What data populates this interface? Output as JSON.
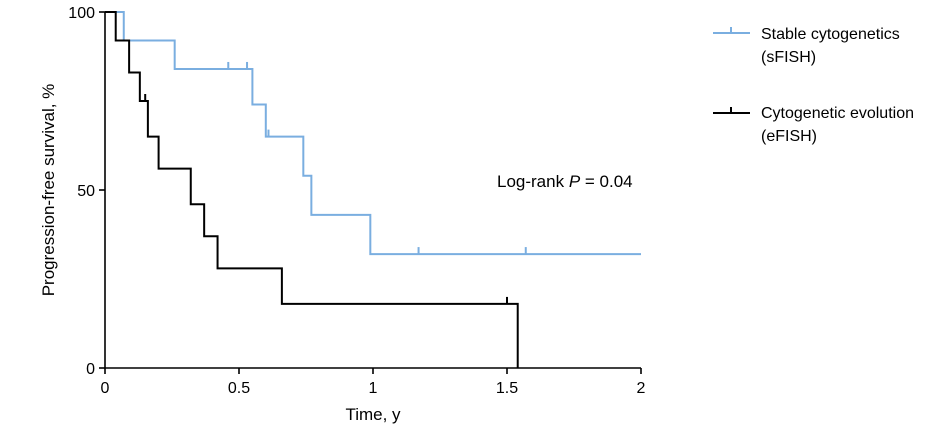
{
  "chart_data": {
    "type": "line",
    "step": true,
    "title": "",
    "xlabel": "Time, y",
    "ylabel": "Progression-free survival, %",
    "xlim": [
      0,
      2
    ],
    "ylim": [
      0,
      100
    ],
    "x_ticks": [
      0,
      0.5,
      1,
      1.5,
      2
    ],
    "x_tick_labels": [
      "0",
      "0.5",
      "1",
      "1.5",
      "2"
    ],
    "y_ticks": [
      0,
      50,
      100
    ],
    "y_tick_labels": [
      "0",
      "50",
      "100"
    ],
    "grid": false,
    "legend_position": "top-right",
    "annotation": {
      "text_prefix": "Log-rank ",
      "text_p": "P",
      "text_suffix": " = 0.04"
    },
    "series": [
      {
        "name_line1": "Stable cytogenetics",
        "name_line2": "(sFISH)",
        "color": "#7aaee0",
        "steps": [
          [
            0,
            100
          ],
          [
            0.07,
            92
          ],
          [
            0.26,
            84
          ],
          [
            0.55,
            74
          ],
          [
            0.6,
            65
          ],
          [
            0.74,
            54
          ],
          [
            0.77,
            43
          ],
          [
            0.99,
            32
          ],
          [
            2.0,
            32
          ]
        ],
        "censored": [
          [
            0.46,
            84
          ],
          [
            0.53,
            84
          ],
          [
            0.61,
            65
          ],
          [
            1.17,
            32
          ],
          [
            1.57,
            32
          ]
        ]
      },
      {
        "name_line1": "Cytogenetic evolution",
        "name_line2": "(eFISH)",
        "color": "#000000",
        "steps": [
          [
            0,
            100
          ],
          [
            0.04,
            92
          ],
          [
            0.09,
            83
          ],
          [
            0.13,
            75
          ],
          [
            0.16,
            65
          ],
          [
            0.2,
            56
          ],
          [
            0.32,
            46
          ],
          [
            0.37,
            37
          ],
          [
            0.42,
            28
          ],
          [
            0.66,
            18
          ],
          [
            1.54,
            0
          ]
        ],
        "censored": [
          [
            0.15,
            75
          ],
          [
            1.5,
            18
          ]
        ]
      }
    ]
  }
}
